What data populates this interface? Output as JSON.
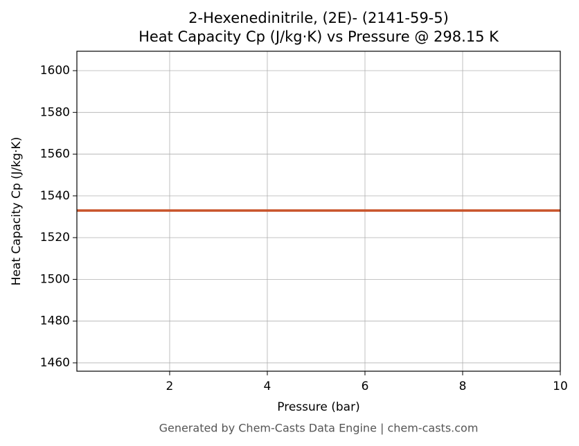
{
  "chart_data": {
    "type": "line",
    "title": "2-Hexenedinitrile, (2E)- (2141-59-5)",
    "subtitle": "Heat Capacity Cp (J/kg·K) vs Pressure @ 298.15 K",
    "x_label": "Pressure (bar)",
    "y_label": "Heat Capacity Cp (J/kg·K)",
    "x": [
      0.1,
      10
    ],
    "series": [
      {
        "name": "Cp",
        "color": "#c8532a",
        "values": [
          1533,
          1533
        ]
      }
    ],
    "xlim": [
      0.1,
      10
    ],
    "xticks": [
      2,
      4,
      6,
      8,
      10
    ],
    "ylim": [
      1456,
      1609.3
    ],
    "yticks": [
      1460,
      1480,
      1500,
      1520,
      1540,
      1560,
      1580,
      1600
    ],
    "grid": true,
    "footer": "Generated by Chem-Casts Data Engine | chem-casts.com"
  }
}
